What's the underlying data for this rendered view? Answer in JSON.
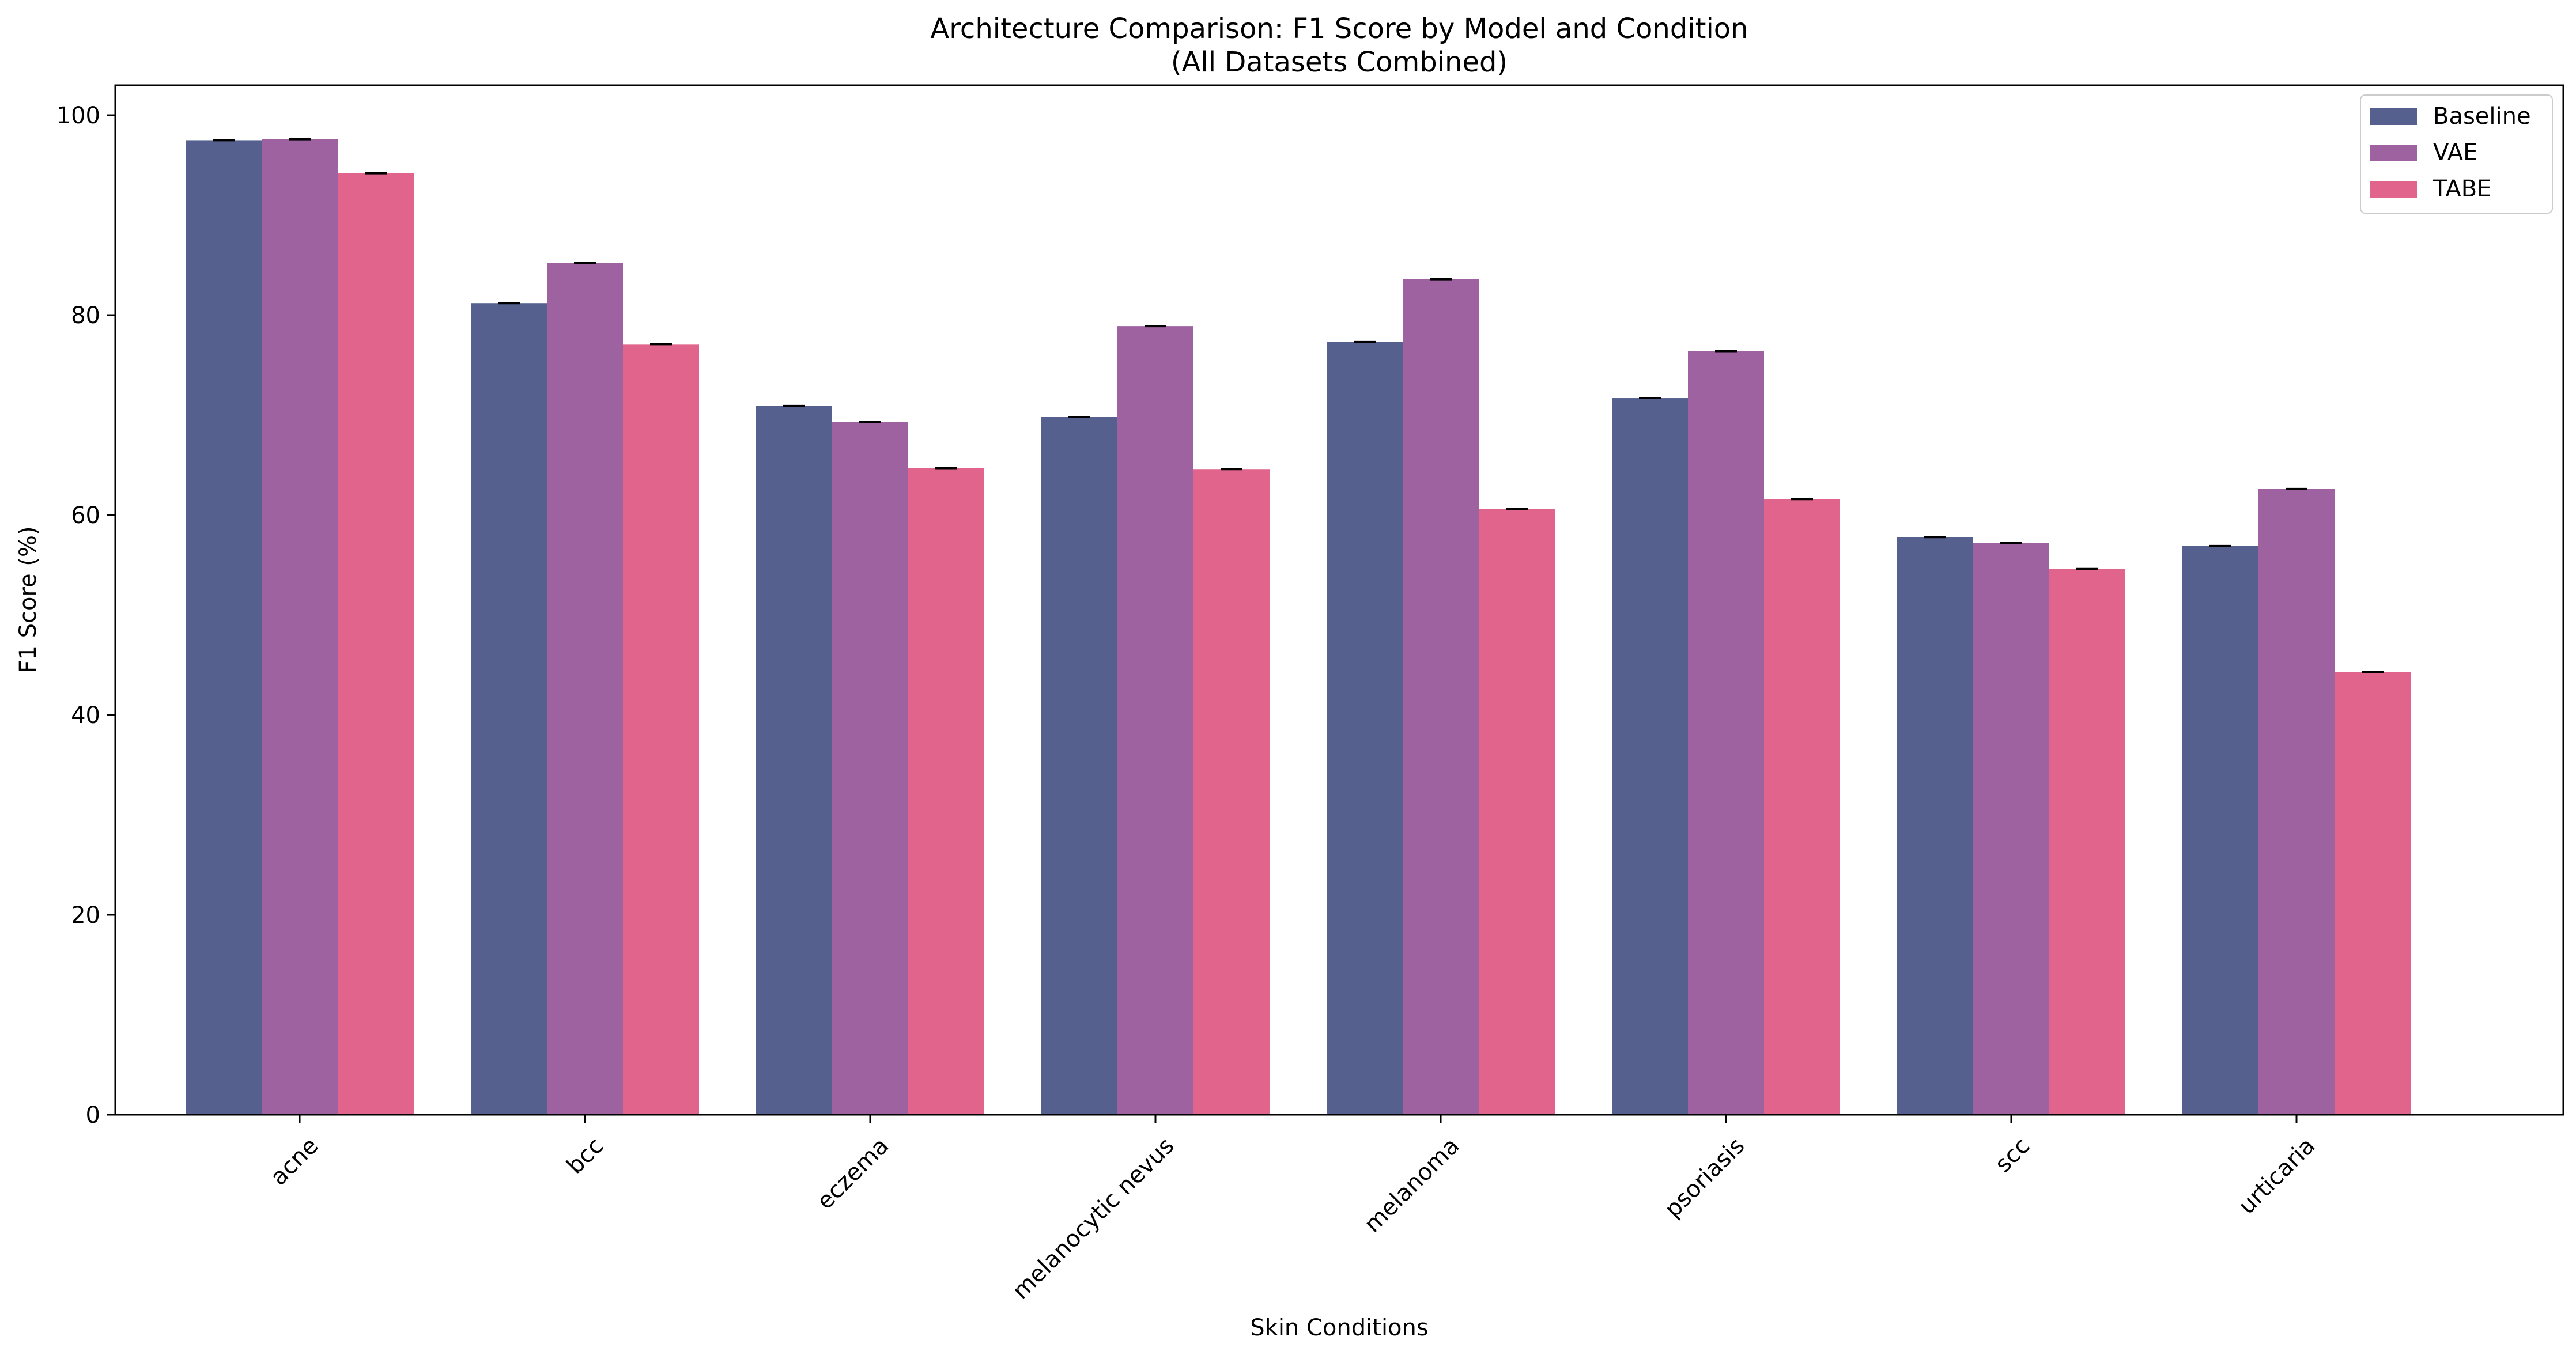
{
  "chart_data": {
    "type": "bar",
    "title": "Architecture Comparison: F1 Score by Model and Condition",
    "subtitle": "(All Datasets Combined)",
    "xlabel": "Skin Conditions",
    "ylabel": "F1 Score (%)",
    "ylim": [
      0,
      103
    ],
    "yticks": [
      0,
      20,
      40,
      60,
      80,
      100
    ],
    "grid": false,
    "legend_position": "top-right",
    "categories": [
      "acne",
      "bcc",
      "eczema",
      "melanocytic nevus",
      "melanoma",
      "psoriasis",
      "scc",
      "urticaria"
    ],
    "series": [
      {
        "name": "Baseline",
        "color": "#55608f",
        "values": [
          97.5,
          81.2,
          70.9,
          69.8,
          77.3,
          71.7,
          57.8,
          56.9
        ]
      },
      {
        "name": "VAE",
        "color": "#9e62a0",
        "values": [
          97.6,
          85.2,
          69.3,
          78.9,
          83.6,
          76.4,
          57.2,
          62.6
        ]
      },
      {
        "name": "TABE",
        "color": "#e0648c",
        "values": [
          94.2,
          77.1,
          64.7,
          64.6,
          60.6,
          61.6,
          54.6,
          44.3
        ]
      }
    ]
  }
}
